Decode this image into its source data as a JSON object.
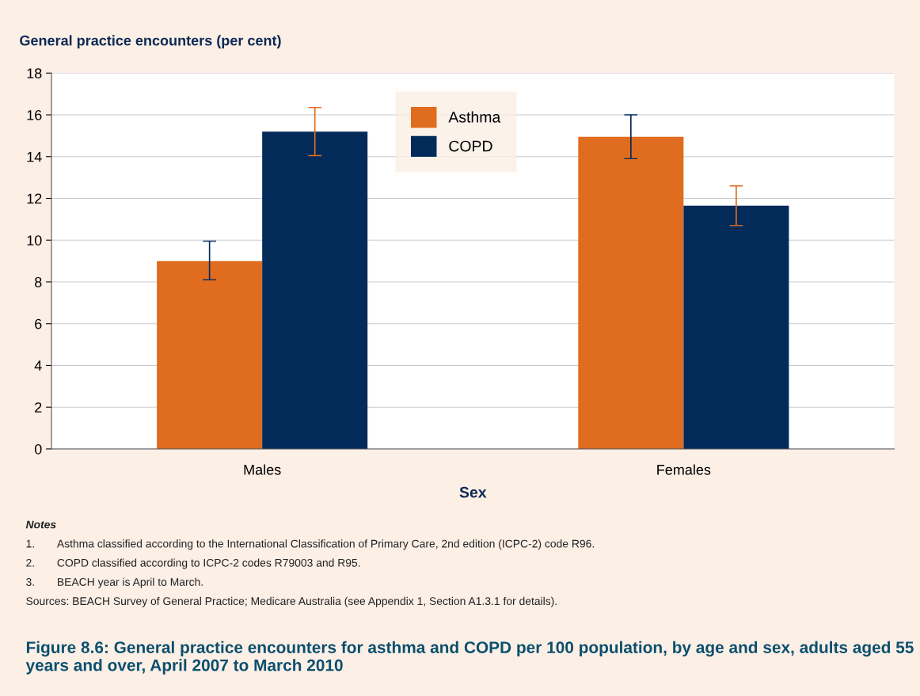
{
  "chart_data": {
    "type": "bar",
    "title": "Figure 8.6: General practice encounters for asthma and COPD per 100 population, by age and sex, adults aged 55 years and over, April 2007 to March 2010",
    "ylabel": "General practice encounters (per cent)",
    "xlabel": "Sex",
    "categories": [
      "Males",
      "Females"
    ],
    "series": [
      {
        "name": "Asthma",
        "color": "#e06c1f",
        "values": [
          9.0,
          14.95
        ],
        "errors": [
          [
            8.1,
            9.95
          ],
          [
            13.9,
            16.0
          ]
        ]
      },
      {
        "name": "COPD",
        "color": "#022b5a",
        "values": [
          15.2,
          11.65
        ],
        "errors": [
          [
            14.05,
            16.35
          ],
          [
            10.7,
            12.6
          ]
        ]
      }
    ],
    "ylim": [
      0,
      18
    ],
    "yticks": [
      0,
      2,
      4,
      6,
      8,
      10,
      12,
      14,
      16,
      18
    ],
    "grid": "y",
    "legend": "top",
    "annotations": [
      "Notes",
      "1.  Asthma classified according to the International Classification of Primary Care, 2nd edition (ICPC-2) code R96.",
      "2.  COPD classified according to ICPC-2 codes R79003 and R95.",
      "3.  BEACH year is April to March.",
      "Sources: BEACH Survey of General Practice; Medicare Australia (see Appendix 1, Section A1.3.1 for details)."
    ]
  }
}
